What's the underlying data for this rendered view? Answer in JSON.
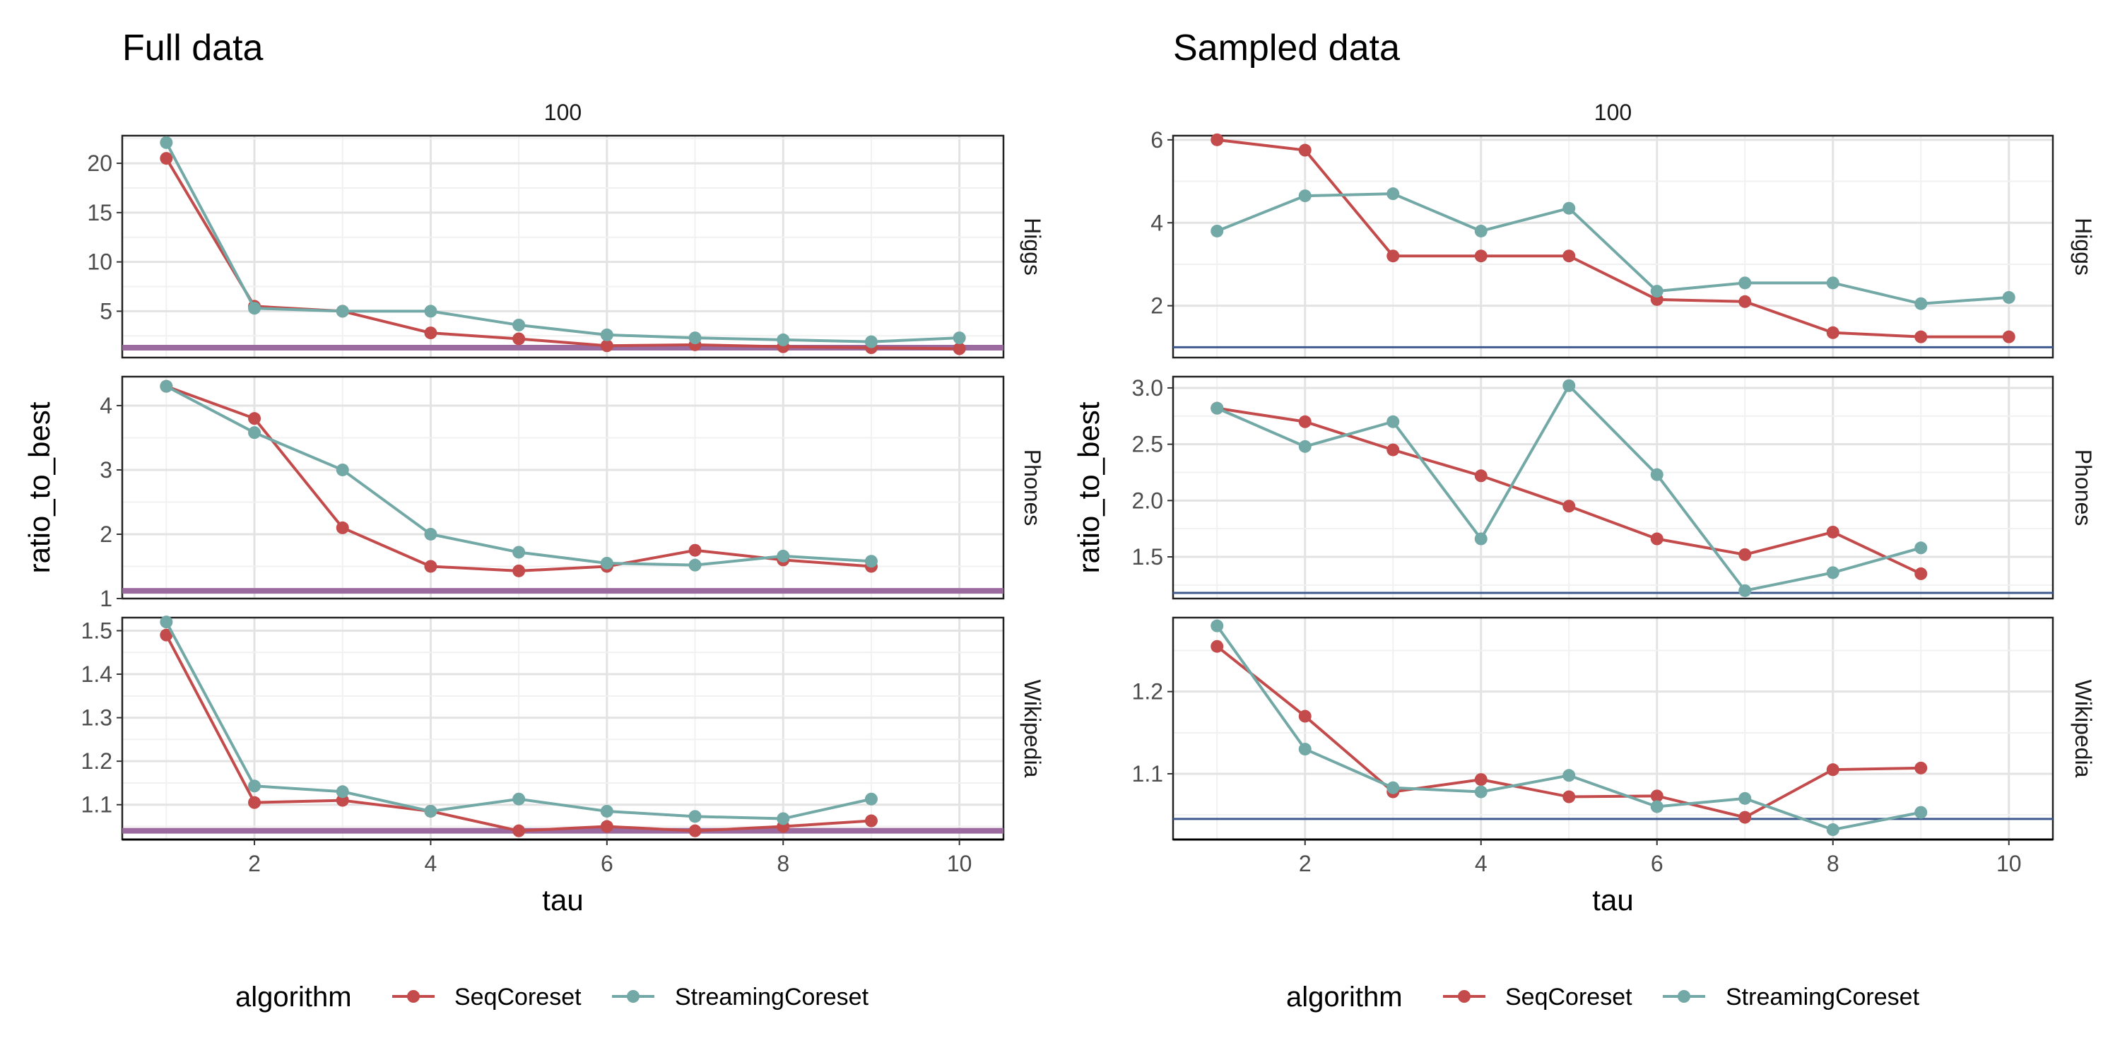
{
  "colors": {
    "SeqCoreset": "#c44b4b",
    "StreamingCoreset": "#72a8a5",
    "baseline_full": "#9b6a9e",
    "baseline_sampled": "#3f5a8f",
    "grid_major": "#e3e3e3",
    "grid_minor": "#f1f1f1"
  },
  "legend": {
    "title": "algorithm",
    "items": [
      "SeqCoreset",
      "StreamingCoreset"
    ]
  },
  "chart_data": [
    {
      "type": "line",
      "title": "Full data",
      "facet_top": "100",
      "xlabel": "tau",
      "ylabel": "ratio_to_best",
      "xlim": [
        0.5,
        10.5
      ],
      "xticks": [
        2,
        4,
        6,
        8,
        10
      ],
      "grid": true,
      "legend_position": "bottom",
      "facets": [
        {
          "row": "Higgs",
          "ylim": [
            0.3,
            22.8
          ],
          "yticks": [
            5,
            10,
            15,
            20
          ],
          "baseline": 1.3,
          "series": [
            {
              "name": "SeqCoreset",
              "x": [
                1,
                2,
                3,
                4,
                5,
                6,
                7,
                8,
                9,
                10
              ],
              "y": [
                20.5,
                5.5,
                5.0,
                2.8,
                2.2,
                1.5,
                1.6,
                1.4,
                1.3,
                1.2
              ]
            },
            {
              "name": "StreamingCoreset",
              "x": [
                1,
                2,
                3,
                4,
                5,
                6,
                7,
                8,
                9,
                10
              ],
              "y": [
                22.1,
                5.3,
                5.0,
                5.0,
                3.6,
                2.6,
                2.3,
                2.1,
                1.9,
                2.3
              ]
            }
          ]
        },
        {
          "row": "Phones",
          "ylim": [
            1.0,
            4.45
          ],
          "yticks": [
            1,
            2,
            3,
            4
          ],
          "baseline": 1.12,
          "series": [
            {
              "name": "SeqCoreset",
              "x": [
                1,
                2,
                3,
                4,
                5,
                6,
                7,
                8,
                9
              ],
              "y": [
                4.3,
                3.8,
                2.1,
                1.5,
                1.43,
                1.5,
                1.75,
                1.6,
                1.5
              ]
            },
            {
              "name": "StreamingCoreset",
              "x": [
                1,
                2,
                3,
                4,
                5,
                6,
                7,
                8,
                9
              ],
              "y": [
                4.3,
                3.58,
                3.0,
                2.0,
                1.72,
                1.55,
                1.52,
                1.66,
                1.58
              ]
            }
          ]
        },
        {
          "row": "Wikipedia",
          "ylim": [
            1.02,
            1.53
          ],
          "yticks": [
            1.1,
            1.2,
            1.3,
            1.4,
            1.5
          ],
          "baseline": 1.04,
          "series": [
            {
              "name": "SeqCoreset",
              "x": [
                1,
                2,
                3,
                4,
                5,
                6,
                7,
                8,
                9
              ],
              "y": [
                1.49,
                1.105,
                1.11,
                1.085,
                1.04,
                1.05,
                1.04,
                1.05,
                1.063
              ]
            },
            {
              "name": "StreamingCoreset",
              "x": [
                1,
                2,
                3,
                4,
                5,
                6,
                7,
                8,
                9
              ],
              "y": [
                1.52,
                1.143,
                1.13,
                1.085,
                1.113,
                1.085,
                1.073,
                1.068,
                1.113
              ]
            }
          ]
        }
      ]
    },
    {
      "type": "line",
      "title": "Sampled data",
      "facet_top": "100",
      "xlabel": "tau",
      "ylabel": "ratio_to_best",
      "xlim": [
        0.5,
        10.5
      ],
      "xticks": [
        2,
        4,
        6,
        8,
        10
      ],
      "grid": true,
      "legend_position": "bottom",
      "facets": [
        {
          "row": "Higgs",
          "ylim": [
            0.75,
            6.1
          ],
          "yticks": [
            2,
            4,
            6
          ],
          "baseline": 1.0,
          "series": [
            {
              "name": "SeqCoreset",
              "x": [
                1,
                2,
                3,
                4,
                5,
                6,
                7,
                8,
                9,
                10
              ],
              "y": [
                6.0,
                5.75,
                3.2,
                3.2,
                3.2,
                2.15,
                2.1,
                1.35,
                1.25,
                1.25
              ]
            },
            {
              "name": "StreamingCoreset",
              "x": [
                1,
                2,
                3,
                4,
                5,
                6,
                7,
                8,
                9,
                10
              ],
              "y": [
                3.8,
                4.65,
                4.7,
                3.8,
                4.35,
                2.35,
                2.55,
                2.55,
                2.05,
                2.2
              ]
            }
          ]
        },
        {
          "row": "Phones",
          "ylim": [
            1.13,
            3.1
          ],
          "yticks": [
            1.5,
            2.0,
            2.5,
            3.0
          ],
          "baseline": 1.18,
          "series": [
            {
              "name": "SeqCoreset",
              "x": [
                1,
                2,
                3,
                4,
                5,
                6,
                7,
                8,
                9
              ],
              "y": [
                2.82,
                2.7,
                2.45,
                2.22,
                1.95,
                1.66,
                1.52,
                1.72,
                1.35
              ]
            },
            {
              "name": "StreamingCoreset",
              "x": [
                1,
                2,
                3,
                4,
                5,
                6,
                7,
                8,
                9
              ],
              "y": [
                2.82,
                2.48,
                2.7,
                1.66,
                3.02,
                2.23,
                1.2,
                1.36,
                1.58
              ]
            }
          ]
        },
        {
          "row": "Wikipedia",
          "ylim": [
            1.02,
            1.29
          ],
          "yticks": [
            1.1,
            1.2
          ],
          "baseline": 1.045,
          "series": [
            {
              "name": "SeqCoreset",
              "x": [
                1,
                2,
                3,
                4,
                5,
                6,
                7,
                8,
                9
              ],
              "y": [
                1.255,
                1.17,
                1.078,
                1.093,
                1.072,
                1.073,
                1.047,
                1.105,
                1.107
              ]
            },
            {
              "name": "StreamingCoreset",
              "x": [
                1,
                2,
                3,
                4,
                5,
                6,
                7,
                8,
                9
              ],
              "y": [
                1.28,
                1.13,
                1.083,
                1.078,
                1.098,
                1.06,
                1.07,
                1.032,
                1.053
              ]
            }
          ]
        }
      ]
    }
  ]
}
